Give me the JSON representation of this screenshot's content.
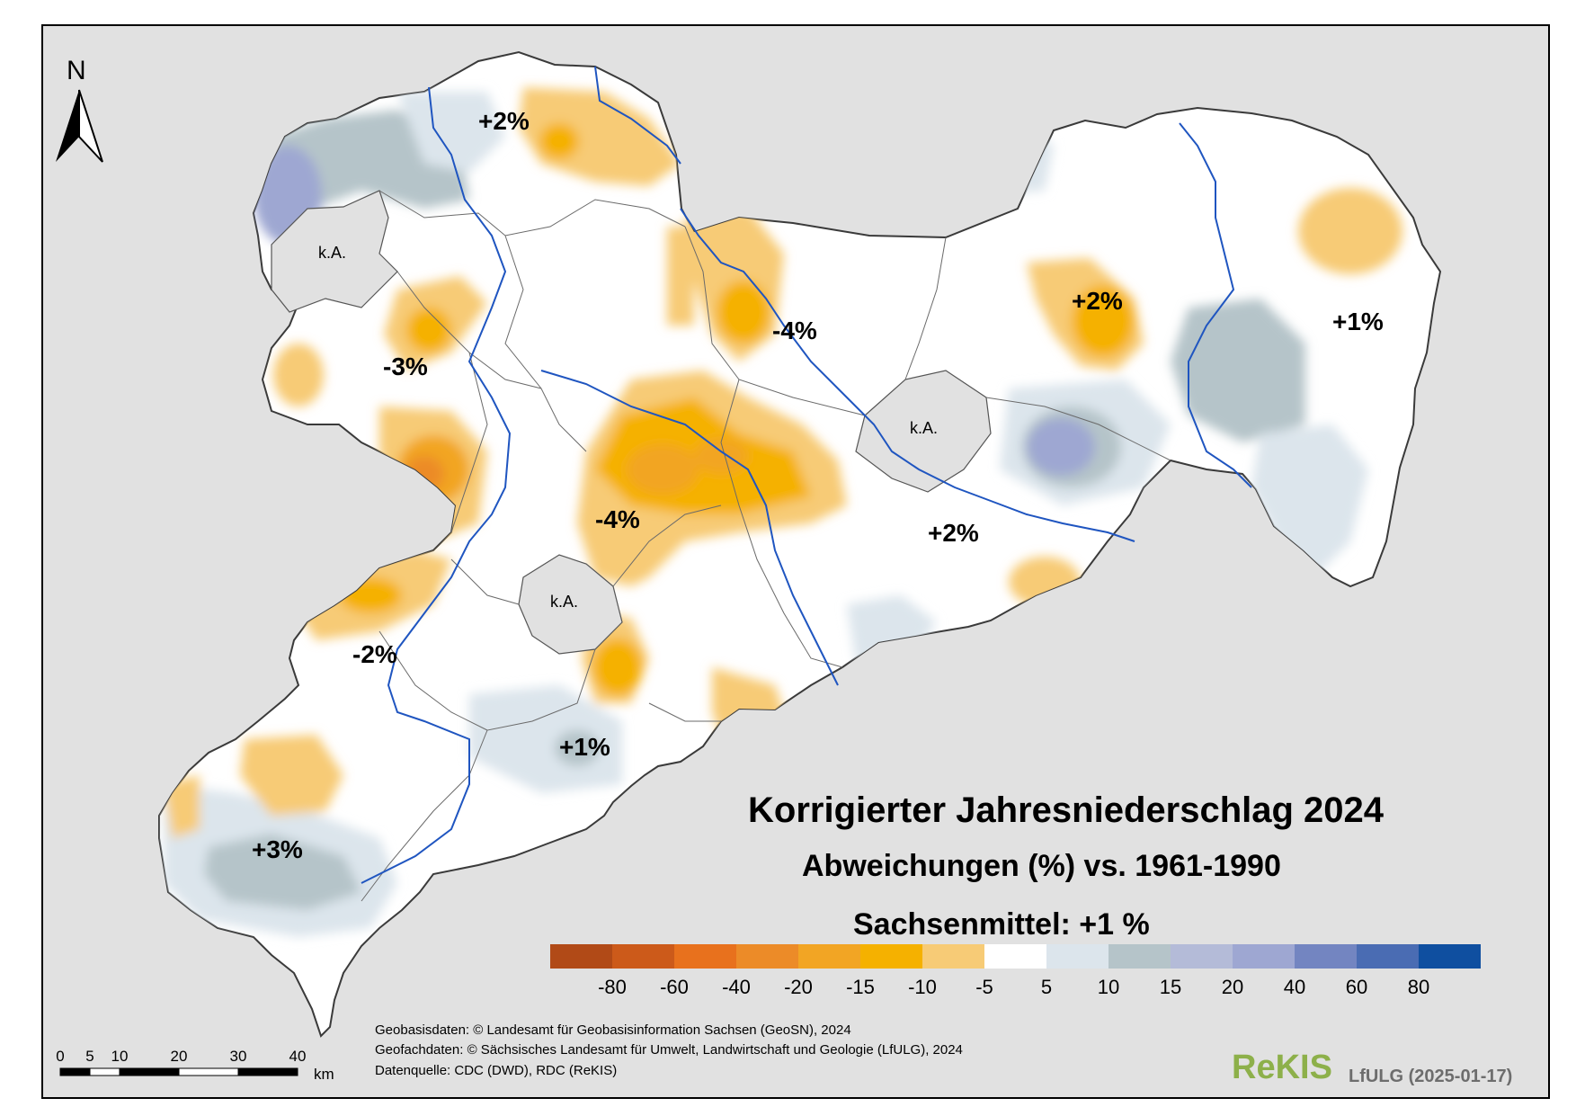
{
  "title": "Korrigierter Jahresniederschlag 2024",
  "subtitle": "Abweichungen (%) vs. 1961-1990",
  "mean_text": "Sachsenmittel: +1 %",
  "north_label": "N",
  "region_labels": [
    "+2%",
    "-3%",
    "-4%",
    "-4%",
    "+2%",
    "+1%",
    "+2%",
    "-2%",
    "+1%",
    "+3%"
  ],
  "no_data_labels": [
    "k.A.",
    "k.A.",
    "k.A."
  ],
  "legend": {
    "colors": [
      "#b14a17",
      "#cc5a1a",
      "#e8711d",
      "#ec8b28",
      "#f2a524",
      "#f5b100",
      "#f7cb76",
      "#ffffff",
      "#dce5ec",
      "#b5c4c9",
      "#b4bbd8",
      "#9ea7d2",
      "#7385c1",
      "#4a6cb3",
      "#0f4fa0"
    ],
    "tick_labels": [
      "-80",
      "-60",
      "-40",
      "-20",
      "-15",
      "-10",
      "-5",
      "5",
      "10",
      "15",
      "20",
      "40",
      "60",
      "80"
    ]
  },
  "scalebar": {
    "ticks": [
      "0",
      "5",
      "10",
      "20",
      "30",
      "40"
    ],
    "unit": "km"
  },
  "credits": [
    "Geobasisdaten: © Landesamt für Geobasisinformation Sachsen (GeoSN), 2024",
    "Geofachdaten: © Sächsisches Landesamt für Umwelt, Landwirtschaft und Geologie (LfULG), 2024",
    "Datenquelle: CDC (DWD), RDC (ReKIS)"
  ],
  "brand": "ReKIS",
  "brand_suffix": "LfULG (2025-01-17)",
  "colors": {
    "background": "#e1e1e1",
    "river": "#1f55c0",
    "border": "#3a3a3a"
  }
}
